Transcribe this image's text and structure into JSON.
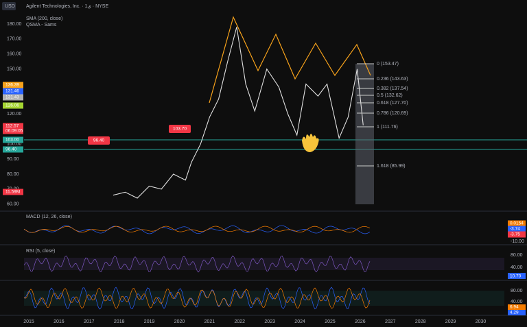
{
  "header": {
    "currency": "USD",
    "symbol": "Agilent Technologies, Inc. · 1ي · NYSE",
    "indicator_1": "SMA (200, close)",
    "indicator_2": "QSMA - Sams"
  },
  "price_axis": [
    "180.00",
    "170.00",
    "160.00",
    "150.00",
    "140.00",
    "130.00",
    "120.00",
    "110.00",
    "100.00",
    "90.00",
    "80.00",
    "70.00",
    "60.00"
  ],
  "badges": [
    "136.39",
    "131.46",
    "131.43",
    "126.06",
    "112.57",
    "06:09:05",
    "103.00",
    "96.40",
    "11.59M"
  ],
  "callouts": [
    "103.70",
    "96.40"
  ],
  "fib_levels": [
    "0 (153.47)",
    "0.236 (143.63)",
    "0.382 (137.54)",
    "0.5 (132.62)",
    "0.618 (127.70)",
    "0.786 (120.69)",
    "1 (111.76)",
    "1.618 (85.99)"
  ],
  "macd": {
    "title": "MACD (12, 26, close)",
    "values": [
      "0.0154",
      "-3.74",
      "-3.75"
    ],
    "axis": "-10.00"
  },
  "rsi": {
    "title": "RSI (5, close)",
    "axis": [
      "80.00",
      "40.00"
    ],
    "value": "10.70"
  },
  "stoch": {
    "axis": [
      "80.00",
      "40.00"
    ],
    "values": [
      "6.94",
      "4.29"
    ]
  },
  "years": [
    "2015",
    "2016",
    "2017",
    "2018",
    "2019",
    "2020",
    "2021",
    "2022",
    "2023",
    "2024",
    "2025",
    "2026",
    "2027",
    "2028",
    "2029",
    "2030"
  ],
  "price_series": {
    "x": [
      2017.8,
      2018.2,
      2018.6,
      2019.0,
      2019.4,
      2019.8,
      2020.2,
      2020.4,
      2020.7,
      2021.0,
      2021.3,
      2021.6,
      2021.9,
      2022.2,
      2022.5,
      2022.9,
      2023.3,
      2023.6,
      2023.9,
      2024.2,
      2024.6,
      2024.9,
      2025.3,
      2025.6,
      2025.9,
      2026.1
    ],
    "values": [
      66,
      68,
      64,
      72,
      70,
      80,
      76,
      88,
      100,
      118,
      130,
      155,
      178,
      140,
      122,
      150,
      138,
      120,
      106,
      140,
      132,
      140,
      104,
      118,
      150,
      112.57
    ]
  }
}
